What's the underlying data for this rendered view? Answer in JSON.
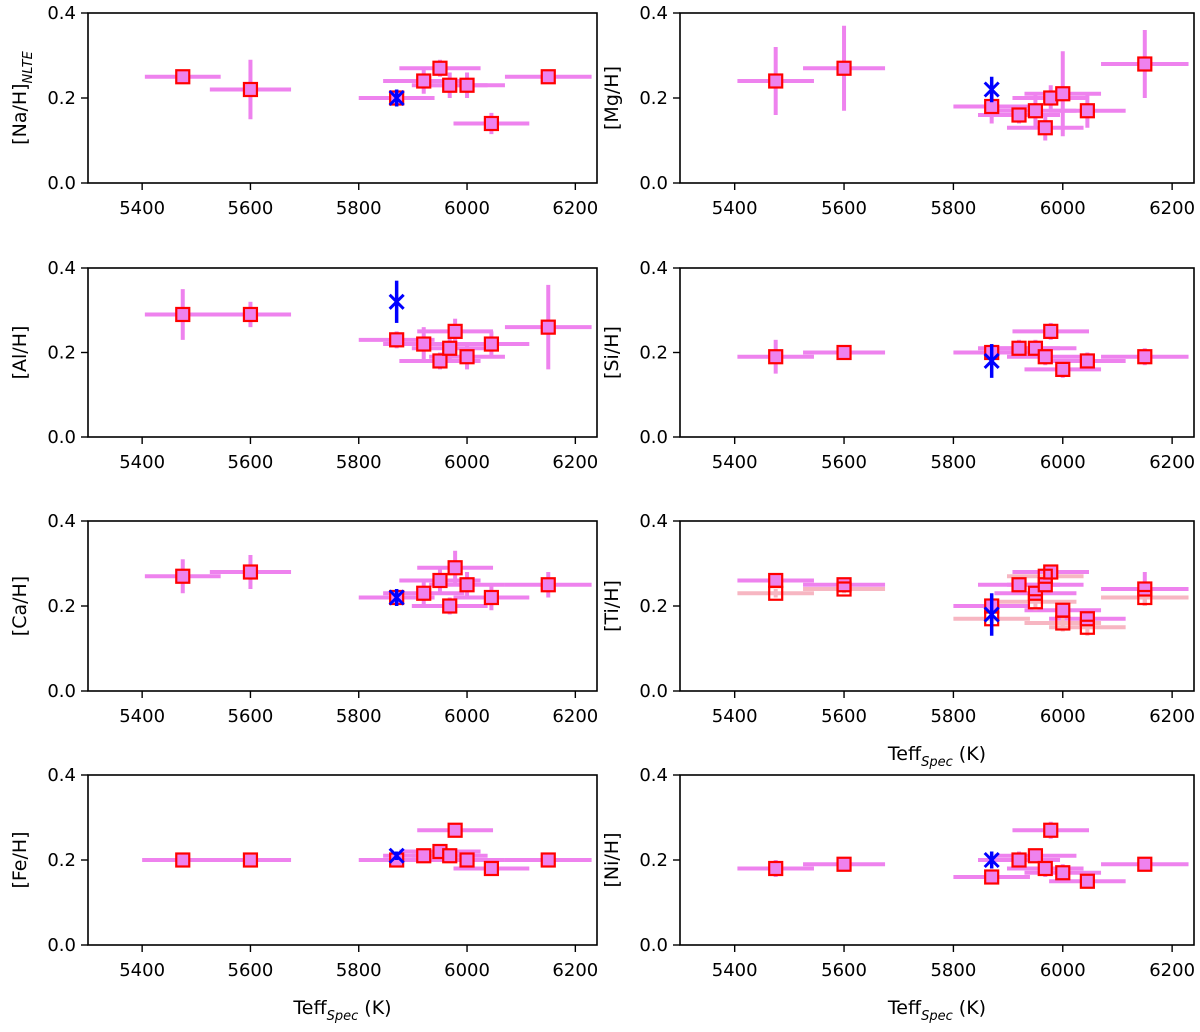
{
  "chart_data": [
    {
      "type": "scatter",
      "ylabel": "[Na/H]",
      "ylabel_sub": "NLTE",
      "xlabel": "",
      "xlim": [
        5300,
        6240
      ],
      "ylim": [
        0.0,
        0.4
      ],
      "x_ticks": [
        "5400",
        "5600",
        "5800",
        "6000",
        "6200"
      ],
      "y_ticks": [
        "0.0",
        "0.2",
        "0.4"
      ],
      "series": [
        {
          "points": [
            {
              "x": 5475,
              "y": 0.25,
              "xerr": 70,
              "yerr": 0.01
            },
            {
              "x": 5600,
              "y": 0.22,
              "xerr": 75,
              "yerr": 0.07
            },
            {
              "x": 5870,
              "y": 0.2,
              "xerr": 70,
              "yerr": 0.01
            },
            {
              "x": 5920,
              "y": 0.24,
              "xerr": 75,
              "yerr": 0.03
            },
            {
              "x": 5950,
              "y": 0.27,
              "xerr": 75,
              "yerr": 0.02
            },
            {
              "x": 5968,
              "y": 0.23,
              "xerr": 70,
              "yerr": 0.03
            },
            {
              "x": 6000,
              "y": 0.23,
              "xerr": 70,
              "yerr": 0.03
            },
            {
              "x": 6045,
              "y": 0.14,
              "xerr": 70,
              "yerr": 0.025
            },
            {
              "x": 6150,
              "y": 0.25,
              "xerr": 80,
              "yerr": 0.01
            }
          ]
        },
        {
          "reference": true,
          "points": [
            {
              "x": 5870,
              "y": 0.2,
              "yerr": 0.02
            }
          ]
        }
      ]
    },
    {
      "type": "scatter",
      "ylabel": "[Mg/H]",
      "xlabel": "",
      "xlim": [
        5300,
        6240
      ],
      "ylim": [
        0.0,
        0.4
      ],
      "x_ticks": [
        "5400",
        "5600",
        "5800",
        "6000",
        "6200"
      ],
      "y_ticks": [
        "0.0",
        "0.2",
        "0.4"
      ],
      "series": [
        {
          "points": [
            {
              "x": 5475,
              "y": 0.24,
              "xerr": 70,
              "yerr": 0.08
            },
            {
              "x": 5600,
              "y": 0.27,
              "xerr": 75,
              "yerr": 0.1
            },
            {
              "x": 5870,
              "y": 0.18,
              "xerr": 70,
              "yerr": 0.04
            },
            {
              "x": 5920,
              "y": 0.16,
              "xerr": 75,
              "yerr": 0.02
            },
            {
              "x": 5950,
              "y": 0.17,
              "xerr": 75,
              "yerr": 0.04
            },
            {
              "x": 5968,
              "y": 0.13,
              "xerr": 70,
              "yerr": 0.03
            },
            {
              "x": 5978,
              "y": 0.2,
              "xerr": 70,
              "yerr": 0.03
            },
            {
              "x": 6000,
              "y": 0.21,
              "xerr": 70,
              "yerr": 0.1
            },
            {
              "x": 6045,
              "y": 0.17,
              "xerr": 70,
              "yerr": 0.04
            },
            {
              "x": 6150,
              "y": 0.28,
              "xerr": 80,
              "yerr": 0.08
            }
          ]
        },
        {
          "reference": true,
          "points": [
            {
              "x": 5870,
              "y": 0.22,
              "yerr": 0.03
            }
          ]
        }
      ]
    },
    {
      "type": "scatter",
      "ylabel": "[Al/H]",
      "xlabel": "",
      "xlim": [
        5300,
        6240
      ],
      "ylim": [
        0.0,
        0.4
      ],
      "x_ticks": [
        "5400",
        "5600",
        "5800",
        "6000",
        "6200"
      ],
      "y_ticks": [
        "0.0",
        "0.2",
        "0.4"
      ],
      "series": [
        {
          "points": [
            {
              "x": 5475,
              "y": 0.29,
              "xerr": 70,
              "yerr": 0.06
            },
            {
              "x": 5600,
              "y": 0.29,
              "xerr": 75,
              "yerr": 0.03
            },
            {
              "x": 5870,
              "y": 0.23,
              "xerr": 70,
              "yerr": 0.02
            },
            {
              "x": 5920,
              "y": 0.22,
              "xerr": 75,
              "yerr": 0.04
            },
            {
              "x": 5950,
              "y": 0.18,
              "xerr": 75,
              "yerr": 0.02
            },
            {
              "x": 5968,
              "y": 0.21,
              "xerr": 70,
              "yerr": 0.03
            },
            {
              "x": 5978,
              "y": 0.25,
              "xerr": 70,
              "yerr": 0.03
            },
            {
              "x": 6000,
              "y": 0.19,
              "xerr": 70,
              "yerr": 0.03
            },
            {
              "x": 6045,
              "y": 0.22,
              "xerr": 70,
              "yerr": 0.03
            },
            {
              "x": 6150,
              "y": 0.26,
              "xerr": 80,
              "yerr": 0.1
            }
          ]
        },
        {
          "reference": true,
          "points": [
            {
              "x": 5870,
              "y": 0.32,
              "yerr": 0.05
            }
          ]
        }
      ]
    },
    {
      "type": "scatter",
      "ylabel": "[Si/H]",
      "xlabel": "",
      "xlim": [
        5300,
        6240
      ],
      "ylim": [
        0.0,
        0.4
      ],
      "x_ticks": [
        "5400",
        "5600",
        "5800",
        "6000",
        "6200"
      ],
      "y_ticks": [
        "0.0",
        "0.2",
        "0.4"
      ],
      "series": [
        {
          "points": [
            {
              "x": 5475,
              "y": 0.19,
              "xerr": 70,
              "yerr": 0.04
            },
            {
              "x": 5600,
              "y": 0.2,
              "xerr": 75,
              "yerr": 0.01
            },
            {
              "x": 5870,
              "y": 0.2,
              "xerr": 70,
              "yerr": 0.01
            },
            {
              "x": 5920,
              "y": 0.21,
              "xerr": 75,
              "yerr": 0.02
            },
            {
              "x": 5950,
              "y": 0.21,
              "xerr": 75,
              "yerr": 0.02
            },
            {
              "x": 5968,
              "y": 0.19,
              "xerr": 70,
              "yerr": 0.02
            },
            {
              "x": 5978,
              "y": 0.25,
              "xerr": 70,
              "yerr": 0.02
            },
            {
              "x": 6000,
              "y": 0.16,
              "xerr": 70,
              "yerr": 0.02
            },
            {
              "x": 6045,
              "y": 0.18,
              "xerr": 70,
              "yerr": 0.02
            },
            {
              "x": 6150,
              "y": 0.19,
              "xerr": 80,
              "yerr": 0.02
            }
          ]
        },
        {
          "reference": true,
          "points": [
            {
              "x": 5870,
              "y": 0.18,
              "yerr": 0.04
            }
          ]
        }
      ]
    },
    {
      "type": "scatter",
      "ylabel": "[Ca/H]",
      "xlabel": "",
      "xlim": [
        5300,
        6240
      ],
      "ylim": [
        0.0,
        0.4
      ],
      "x_ticks": [
        "5400",
        "5600",
        "5800",
        "6000",
        "6200"
      ],
      "y_ticks": [
        "0.0",
        "0.2",
        "0.4"
      ],
      "series": [
        {
          "points": [
            {
              "x": 5475,
              "y": 0.27,
              "xerr": 70,
              "yerr": 0.04
            },
            {
              "x": 5600,
              "y": 0.28,
              "xerr": 75,
              "yerr": 0.04
            },
            {
              "x": 5870,
              "y": 0.22,
              "xerr": 70,
              "yerr": 0.01
            },
            {
              "x": 5920,
              "y": 0.23,
              "xerr": 75,
              "yerr": 0.03
            },
            {
              "x": 5950,
              "y": 0.26,
              "xerr": 75,
              "yerr": 0.03
            },
            {
              "x": 5968,
              "y": 0.2,
              "xerr": 70,
              "yerr": 0.02
            },
            {
              "x": 5978,
              "y": 0.29,
              "xerr": 70,
              "yerr": 0.04
            },
            {
              "x": 6000,
              "y": 0.25,
              "xerr": 70,
              "yerr": 0.03
            },
            {
              "x": 6045,
              "y": 0.22,
              "xerr": 70,
              "yerr": 0.03
            },
            {
              "x": 6150,
              "y": 0.25,
              "xerr": 80,
              "yerr": 0.03
            }
          ]
        },
        {
          "reference": true,
          "points": [
            {
              "x": 5870,
              "y": 0.22,
              "yerr": 0.02
            }
          ]
        }
      ]
    },
    {
      "type": "scatter",
      "ylabel": "[Ti/H]",
      "xlabel": "Teff",
      "xlabel_sub": "Spec",
      "xlabel_unit": " (K)",
      "xlim": [
        5300,
        6240
      ],
      "ylim": [
        0.0,
        0.4
      ],
      "x_ticks": [
        "5400",
        "5600",
        "5800",
        "6000",
        "6200"
      ],
      "y_ticks": [
        "0.0",
        "0.2",
        "0.4"
      ],
      "series": [
        {
          "points": [
            {
              "x": 5475,
              "y": 0.26,
              "xerr": 70,
              "yerr": 0.01
            },
            {
              "x": 5600,
              "y": 0.25,
              "xerr": 75,
              "yerr": 0.01
            },
            {
              "x": 5870,
              "y": 0.2,
              "xerr": 70,
              "yerr": 0.01
            },
            {
              "x": 5920,
              "y": 0.25,
              "xerr": 75,
              "yerr": 0.02
            },
            {
              "x": 5950,
              "y": 0.23,
              "xerr": 75,
              "yerr": 0.02
            },
            {
              "x": 5968,
              "y": 0.25,
              "xerr": 70,
              "yerr": 0.02
            },
            {
              "x": 5978,
              "y": 0.28,
              "xerr": 70,
              "yerr": 0.01
            },
            {
              "x": 6000,
              "y": 0.19,
              "xerr": 70,
              "yerr": 0.02
            },
            {
              "x": 6045,
              "y": 0.17,
              "xerr": 70,
              "yerr": 0.02
            },
            {
              "x": 6150,
              "y": 0.24,
              "xerr": 80,
              "yerr": 0.04
            }
          ]
        },
        {
          "faded": true,
          "points": [
            {
              "x": 5475,
              "y": 0.23,
              "xerr": 70,
              "yerr": 0.01
            },
            {
              "x": 5600,
              "y": 0.24,
              "xerr": 75,
              "yerr": 0.01
            },
            {
              "x": 5870,
              "y": 0.17,
              "xerr": 70,
              "yerr": 0.01
            },
            {
              "x": 5950,
              "y": 0.21,
              "xerr": 75,
              "yerr": 0.02
            },
            {
              "x": 5968,
              "y": 0.27,
              "xerr": 70,
              "yerr": 0.02
            },
            {
              "x": 6000,
              "y": 0.16,
              "xerr": 70,
              "yerr": 0.02
            },
            {
              "x": 6045,
              "y": 0.15,
              "xerr": 70,
              "yerr": 0.02
            },
            {
              "x": 6150,
              "y": 0.22,
              "xerr": 80,
              "yerr": 0.02
            }
          ]
        },
        {
          "reference": true,
          "points": [
            {
              "x": 5870,
              "y": 0.18,
              "yerr": 0.05
            }
          ]
        }
      ]
    },
    {
      "type": "scatter",
      "ylabel": "[Fe/H]",
      "xlabel": "Teff",
      "xlabel_sub": "Spec",
      "xlabel_unit": " (K)",
      "xlim": [
        5300,
        6240
      ],
      "ylim": [
        0.0,
        0.4
      ],
      "x_ticks": [
        "5400",
        "5600",
        "5800",
        "6000",
        "6200"
      ],
      "y_ticks": [
        "0.0",
        "0.2",
        "0.4"
      ],
      "series": [
        {
          "points": [
            {
              "x": 5475,
              "y": 0.2,
              "xerr": 75,
              "yerr": 0.005
            },
            {
              "x": 5600,
              "y": 0.2,
              "xerr": 75,
              "yerr": 0.005
            },
            {
              "x": 5870,
              "y": 0.2,
              "xerr": 70,
              "yerr": 0.005
            },
            {
              "x": 5920,
              "y": 0.21,
              "xerr": 75,
              "yerr": 0.005
            },
            {
              "x": 5950,
              "y": 0.22,
              "xerr": 75,
              "yerr": 0.005
            },
            {
              "x": 5968,
              "y": 0.21,
              "xerr": 70,
              "yerr": 0.005
            },
            {
              "x": 5978,
              "y": 0.27,
              "xerr": 70,
              "yerr": 0.005
            },
            {
              "x": 6000,
              "y": 0.2,
              "xerr": 70,
              "yerr": 0.005
            },
            {
              "x": 6045,
              "y": 0.18,
              "xerr": 70,
              "yerr": 0.005
            },
            {
              "x": 6150,
              "y": 0.2,
              "xerr": 80,
              "yerr": 0.005
            }
          ]
        },
        {
          "reference": true,
          "points": [
            {
              "x": 5870,
              "y": 0.21,
              "yerr": 0.01
            }
          ]
        }
      ]
    },
    {
      "type": "scatter",
      "ylabel": "[Ni/H]",
      "xlabel": "Teff",
      "xlabel_sub": "Spec",
      "xlabel_unit": " (K)",
      "xlim": [
        5300,
        6240
      ],
      "ylim": [
        0.0,
        0.4
      ],
      "x_ticks": [
        "5400",
        "5600",
        "5800",
        "6000",
        "6200"
      ],
      "y_ticks": [
        "0.0",
        "0.2",
        "0.4"
      ],
      "series": [
        {
          "points": [
            {
              "x": 5475,
              "y": 0.18,
              "xerr": 70,
              "yerr": 0.02
            },
            {
              "x": 5600,
              "y": 0.19,
              "xerr": 75,
              "yerr": 0.01
            },
            {
              "x": 5870,
              "y": 0.16,
              "xerr": 70,
              "yerr": 0.01
            },
            {
              "x": 5920,
              "y": 0.2,
              "xerr": 75,
              "yerr": 0.02
            },
            {
              "x": 5950,
              "y": 0.21,
              "xerr": 75,
              "yerr": 0.01
            },
            {
              "x": 5968,
              "y": 0.18,
              "xerr": 70,
              "yerr": 0.02
            },
            {
              "x": 5978,
              "y": 0.27,
              "xerr": 70,
              "yerr": 0.02
            },
            {
              "x": 6000,
              "y": 0.17,
              "xerr": 70,
              "yerr": 0.02
            },
            {
              "x": 6045,
              "y": 0.15,
              "xerr": 70,
              "yerr": 0.01
            },
            {
              "x": 6150,
              "y": 0.19,
              "xerr": 80,
              "yerr": 0.01
            }
          ]
        },
        {
          "reference": true,
          "points": [
            {
              "x": 5870,
              "y": 0.2,
              "yerr": 0.02
            }
          ]
        }
      ]
    }
  ],
  "colors": {
    "errorbar": "#ee82ee",
    "errorbar_faded": "#f7b6c2",
    "marker_fill": "#ee82ee",
    "marker_edge": "#ff0000",
    "reference": "#0000ff",
    "axis": "#000000"
  }
}
